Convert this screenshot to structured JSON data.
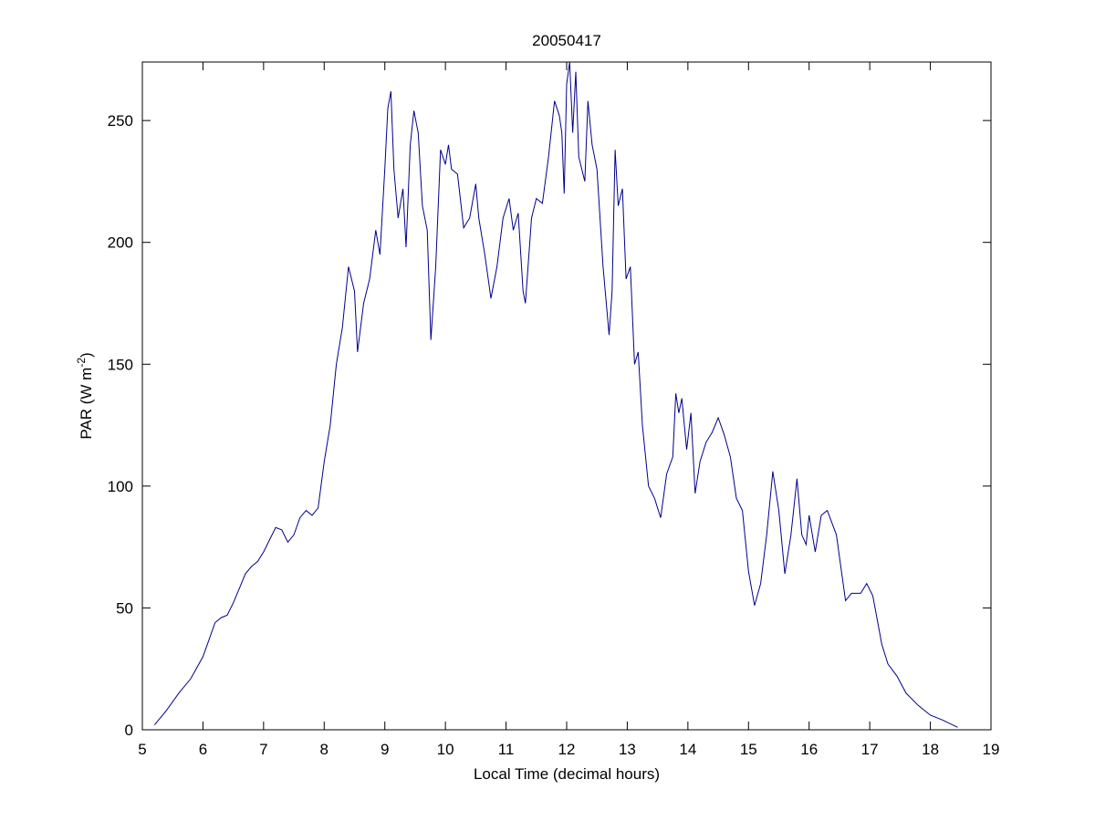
{
  "chart_data": {
    "type": "line",
    "title": "20050417",
    "x_label": "Local Time (decimal hours)",
    "y_label": {
      "text": "PAR (W m",
      "superscript": "-2",
      "suffix": ")"
    },
    "xlim": [
      5,
      19
    ],
    "ylim": [
      0,
      274
    ],
    "xticks": [
      5,
      6,
      7,
      8,
      9,
      10,
      11,
      12,
      13,
      14,
      15,
      16,
      17,
      18,
      19
    ],
    "yticks": [
      0,
      50,
      100,
      150,
      200,
      250
    ],
    "series": [
      {
        "color": "#00008b",
        "x": [
          5.2,
          5.4,
          5.6,
          5.8,
          6.0,
          6.1,
          6.2,
          6.3,
          6.4,
          6.5,
          6.6,
          6.7,
          6.8,
          6.9,
          7.0,
          7.1,
          7.2,
          7.3,
          7.4,
          7.5,
          7.6,
          7.7,
          7.8,
          7.9,
          8.0,
          8.1,
          8.2,
          8.3,
          8.4,
          8.5,
          8.55,
          8.65,
          8.75,
          8.85,
          8.92,
          9.0,
          9.05,
          9.1,
          9.15,
          9.22,
          9.3,
          9.35,
          9.42,
          9.48,
          9.55,
          9.62,
          9.7,
          9.76,
          9.84,
          9.92,
          10.0,
          10.05,
          10.1,
          10.2,
          10.3,
          10.4,
          10.5,
          10.55,
          10.65,
          10.75,
          10.85,
          10.95,
          11.05,
          11.12,
          11.2,
          11.28,
          11.32,
          11.42,
          11.5,
          11.6,
          11.7,
          11.8,
          11.88,
          11.92,
          11.96,
          12.0,
          12.05,
          12.1,
          12.15,
          12.2,
          12.3,
          12.35,
          12.42,
          12.5,
          12.6,
          12.7,
          12.75,
          12.8,
          12.85,
          12.92,
          12.98,
          13.05,
          13.12,
          13.18,
          13.25,
          13.35,
          13.45,
          13.55,
          13.65,
          13.75,
          13.8,
          13.85,
          13.9,
          13.98,
          14.05,
          14.12,
          14.2,
          14.3,
          14.4,
          14.5,
          14.6,
          14.7,
          14.8,
          14.9,
          15.0,
          15.1,
          15.2,
          15.3,
          15.4,
          15.5,
          15.6,
          15.7,
          15.8,
          15.88,
          15.95,
          16.0,
          16.1,
          16.2,
          16.3,
          16.45,
          16.6,
          16.7,
          16.85,
          16.95,
          17.05,
          17.2,
          17.3,
          17.45,
          17.6,
          17.8,
          18.0,
          18.2,
          18.45
        ],
        "values": [
          2,
          8,
          15,
          21,
          30,
          37,
          44,
          46,
          47,
          52,
          58,
          64,
          67,
          69,
          73,
          78,
          83,
          82,
          77,
          80,
          87,
          90,
          88,
          91,
          110,
          125,
          150,
          165,
          190,
          180,
          155,
          175,
          185,
          205,
          195,
          230,
          255,
          262,
          230,
          210,
          222,
          198,
          240,
          254,
          245,
          215,
          205,
          160,
          190,
          238,
          232,
          240,
          230,
          228,
          206,
          210,
          224,
          210,
          195,
          177,
          190,
          210,
          218,
          205,
          212,
          180,
          175,
          210,
          218,
          216,
          235,
          258,
          252,
          245,
          220,
          265,
          274,
          245,
          270,
          235,
          225,
          258,
          240,
          230,
          190,
          162,
          180,
          238,
          215,
          222,
          185,
          190,
          150,
          155,
          125,
          100,
          95,
          87,
          105,
          112,
          138,
          130,
          136,
          115,
          130,
          97,
          110,
          118,
          122,
          128,
          121,
          112,
          95,
          90,
          65,
          51,
          60,
          80,
          106,
          90,
          64,
          80,
          103,
          80,
          76,
          88,
          73,
          88,
          90,
          80,
          53,
          56,
          56,
          60,
          55,
          35,
          27,
          22,
          15,
          10,
          6,
          4,
          1
        ]
      }
    ]
  }
}
